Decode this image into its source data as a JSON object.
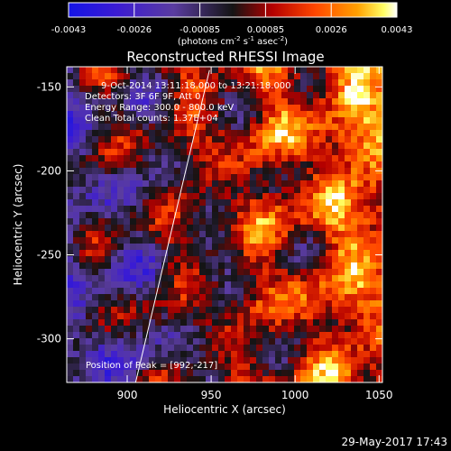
{
  "chart_data": {
    "type": "heatmap",
    "title": "Reconstructed RHESSI Image",
    "xlabel": "Heliocentric X (arcsec)",
    "ylabel": "Heliocentric Y (arcsec)",
    "xlim": [
      864,
      1052
    ],
    "ylim": [
      -326,
      -138
    ],
    "x_ticks": [
      900,
      950,
      1000,
      1050
    ],
    "y_ticks": [
      -300,
      -250,
      -200,
      -150
    ],
    "colorbar": {
      "range": [
        -0.0043,
        0.0043
      ],
      "ticks": [
        "-0.0043",
        "-0.0026",
        "-0.00085",
        "0.00085",
        "0.0026",
        "0.0043"
      ],
      "unit_label": "(photons cm",
      "unit_exp1": "-2",
      "unit_mid": " s",
      "unit_exp2": "-1",
      "unit_mid2": " asec",
      "unit_exp3": "-2",
      "unit_end": ")"
    },
    "annotations": [
      "9-Oct-2014 13:11:18.000 to 13:21:18.000",
      "Detectors: 3F 6F 9F, Att 0",
      "Energy Range: 300.0 - 800.0 keV",
      "Clean     Total counts: 1.37E+04"
    ],
    "peak_label": "Position of Peak = [992,-217]",
    "limb_line": [
      [
        905,
        -326
      ],
      [
        949,
        -140
      ]
    ],
    "pattern": "interference ripple; negative (blue/purple) at lower-left, positive (orange/yellow) at right"
  },
  "footer": {
    "date": "29-May-2017 17:43"
  },
  "colors": {
    "background": "#000000",
    "text": "#ffffff"
  }
}
